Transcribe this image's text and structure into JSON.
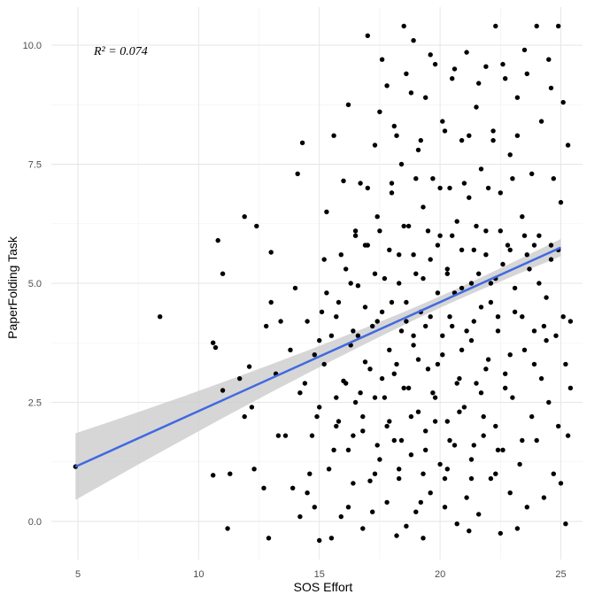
{
  "chart_data": {
    "type": "scatter",
    "xlabel": "SOS Effort",
    "ylabel": "PaperFolding Task",
    "xlim": [
      3.9,
      25.9
    ],
    "ylim": [
      -0.8,
      10.8
    ],
    "x_ticks": [
      5,
      10,
      15,
      20,
      25
    ],
    "y_ticks": [
      0.0,
      2.5,
      5.0,
      7.5,
      10.0
    ],
    "x_tick_labels": [
      "5",
      "10",
      "15",
      "20",
      "25"
    ],
    "y_tick_labels": [
      "0.0",
      "2.5",
      "5.0",
      "7.5",
      "10.0"
    ],
    "annotation": "R² = 0.074",
    "grid": true,
    "point_color": "#000000",
    "fit_line": {
      "color": "#4169E1",
      "x": [
        4.9,
        25.0
      ],
      "y": [
        1.15,
        5.75
      ],
      "band_color": "#cccccc",
      "band_upper": [
        1.85,
        6.0
      ],
      "band_lower": [
        0.45,
        5.5
      ]
    },
    "points": [
      [
        4.9,
        1.15
      ],
      [
        8.4,
        4.3
      ],
      [
        10.6,
        0.97
      ],
      [
        10.6,
        3.75
      ],
      [
        10.7,
        3.65
      ],
      [
        10.8,
        5.9
      ],
      [
        11.0,
        5.2
      ],
      [
        11.0,
        2.75
      ],
      [
        11.2,
        -0.15
      ],
      [
        11.3,
        1.0
      ],
      [
        11.7,
        3.0
      ],
      [
        11.9,
        6.4
      ],
      [
        11.9,
        2.2
      ],
      [
        12.1,
        3.25
      ],
      [
        12.2,
        2.4
      ],
      [
        12.3,
        1.1
      ],
      [
        12.4,
        6.2
      ],
      [
        12.7,
        0.7
      ],
      [
        12.8,
        4.1
      ],
      [
        12.9,
        -0.35
      ],
      [
        13.0,
        5.65
      ],
      [
        13.0,
        4.6
      ],
      [
        13.2,
        3.1
      ],
      [
        13.3,
        1.8
      ],
      [
        13.4,
        4.2
      ],
      [
        13.6,
        1.8
      ],
      [
        13.9,
        0.7
      ],
      [
        14.0,
        4.9
      ],
      [
        14.1,
        7.3
      ],
      [
        14.2,
        0.1
      ],
      [
        14.3,
        7.95
      ],
      [
        14.4,
        2.9
      ],
      [
        14.5,
        0.6
      ],
      [
        14.6,
        1.0
      ],
      [
        14.7,
        1.8
      ],
      [
        14.8,
        0.3
      ],
      [
        14.9,
        2.2
      ],
      [
        15.0,
        3.8
      ],
      [
        15.0,
        2.4
      ],
      [
        15.0,
        -0.4
      ],
      [
        15.1,
        4.4
      ],
      [
        15.2,
        5.5
      ],
      [
        15.3,
        6.5
      ],
      [
        15.4,
        1.1
      ],
      [
        15.5,
        3.9
      ],
      [
        15.5,
        -0.35
      ],
      [
        15.6,
        8.1
      ],
      [
        15.7,
        2.0
      ],
      [
        15.8,
        4.6
      ],
      [
        15.9,
        0.1
      ],
      [
        16.0,
        2.95
      ],
      [
        16.0,
        7.15
      ],
      [
        16.1,
        5.3
      ],
      [
        16.2,
        1.5
      ],
      [
        16.2,
        8.75
      ],
      [
        16.3,
        3.7
      ],
      [
        16.4,
        0.8
      ],
      [
        16.5,
        6.1
      ],
      [
        16.5,
        2.5
      ],
      [
        16.6,
        4.95
      ],
      [
        16.7,
        7.1
      ],
      [
        16.8,
        1.9
      ],
      [
        16.8,
        -0.15
      ],
      [
        16.9,
        3.35
      ],
      [
        17.0,
        5.8
      ],
      [
        17.0,
        10.2
      ],
      [
        17.1,
        0.85
      ],
      [
        17.2,
        4.1
      ],
      [
        17.3,
        2.6
      ],
      [
        17.3,
        7.9
      ],
      [
        17.4,
        6.4
      ],
      [
        17.5,
        1.3
      ],
      [
        17.5,
        8.6
      ],
      [
        17.6,
        3.0
      ],
      [
        17.7,
        5.1
      ],
      [
        17.8,
        0.4
      ],
      [
        17.8,
        9.15
      ],
      [
        17.9,
        2.1
      ],
      [
        18.0,
        4.6
      ],
      [
        18.0,
        6.9
      ],
      [
        18.1,
        1.7
      ],
      [
        18.1,
        8.3
      ],
      [
        18.2,
        3.3
      ],
      [
        18.3,
        5.6
      ],
      [
        18.3,
        0.9
      ],
      [
        18.4,
        7.5
      ],
      [
        18.5,
        2.8
      ],
      [
        18.5,
        10.4
      ],
      [
        18.6,
        4.2
      ],
      [
        18.6,
        -0.1
      ],
      [
        18.7,
        6.2
      ],
      [
        18.8,
        1.4
      ],
      [
        18.8,
        9.0
      ],
      [
        18.9,
        3.7
      ],
      [
        18.9,
        10.1
      ],
      [
        19.0,
        5.2
      ],
      [
        19.0,
        0.2
      ],
      [
        19.1,
        2.3
      ],
      [
        19.1,
        7.8
      ],
      [
        19.2,
        4.4
      ],
      [
        19.3,
        6.6
      ],
      [
        19.3,
        -0.35
      ],
      [
        19.4,
        1.9
      ],
      [
        19.4,
        8.9
      ],
      [
        19.5,
        3.2
      ],
      [
        19.6,
        5.5
      ],
      [
        19.6,
        0.6
      ],
      [
        19.7,
        7.2
      ],
      [
        19.8,
        2.6
      ],
      [
        19.8,
        9.6
      ],
      [
        19.9,
        4.8
      ],
      [
        20.0,
        1.2
      ],
      [
        20.0,
        6.0
      ],
      [
        20.1,
        3.5
      ],
      [
        20.1,
        8.4
      ],
      [
        20.2,
        0.9
      ],
      [
        20.3,
        5.3
      ],
      [
        20.3,
        2.1
      ],
      [
        20.4,
        7.0
      ],
      [
        20.5,
        4.1
      ],
      [
        20.5,
        9.3
      ],
      [
        20.6,
        1.6
      ],
      [
        20.7,
        6.3
      ],
      [
        20.7,
        -0.05
      ],
      [
        20.8,
        3.0
      ],
      [
        20.9,
        8.0
      ],
      [
        20.9,
        4.9
      ],
      [
        21.0,
        2.4
      ],
      [
        21.1,
        9.85
      ],
      [
        21.1,
        0.5
      ],
      [
        21.2,
        6.8
      ],
      [
        21.3,
        3.8
      ],
      [
        21.3,
        1.3
      ],
      [
        21.4,
        5.7
      ],
      [
        21.5,
        8.7
      ],
      [
        21.5,
        2.9
      ],
      [
        21.6,
        0.15
      ],
      [
        21.7,
        4.5
      ],
      [
        21.7,
        7.4
      ],
      [
        21.8,
        1.8
      ],
      [
        21.9,
        6.1
      ],
      [
        21.9,
        9.55
      ],
      [
        22.0,
        3.4
      ],
      [
        22.1,
        0.9
      ],
      [
        22.1,
        5.0
      ],
      [
        22.2,
        8.2
      ],
      [
        22.3,
        2.0
      ],
      [
        22.3,
        10.4
      ],
      [
        22.4,
        4.3
      ],
      [
        22.5,
        6.9
      ],
      [
        22.5,
        -0.25
      ],
      [
        22.6,
        1.5
      ],
      [
        22.7,
        9.3
      ],
      [
        22.7,
        3.1
      ],
      [
        22.8,
        5.8
      ],
      [
        22.9,
        0.6
      ],
      [
        22.9,
        7.7
      ],
      [
        23.0,
        2.6
      ],
      [
        23.1,
        4.9
      ],
      [
        23.2,
        -0.15
      ],
      [
        23.2,
        8.9
      ],
      [
        23.3,
        1.2
      ],
      [
        23.4,
        6.4
      ],
      [
        23.5,
        3.6
      ],
      [
        23.5,
        9.9
      ],
      [
        23.6,
        0.3
      ],
      [
        23.7,
        5.3
      ],
      [
        23.8,
        2.2
      ],
      [
        23.8,
        7.3
      ],
      [
        23.9,
        4.0
      ],
      [
        24.0,
        10.4
      ],
      [
        24.0,
        1.7
      ],
      [
        24.1,
        6.0
      ],
      [
        24.2,
        3.0
      ],
      [
        24.2,
        8.4
      ],
      [
        24.3,
        0.5
      ],
      [
        24.4,
        4.7
      ],
      [
        24.5,
        2.5
      ],
      [
        24.5,
        9.7
      ],
      [
        24.6,
        5.8
      ],
      [
        24.7,
        1.0
      ],
      [
        24.7,
        7.2
      ],
      [
        24.8,
        3.9
      ],
      [
        24.9,
        10.4
      ],
      [
        24.9,
        2.0
      ],
      [
        25.0,
        6.7
      ],
      [
        25.0,
        0.8
      ],
      [
        25.1,
        8.8
      ],
      [
        25.1,
        4.3
      ],
      [
        25.2,
        3.3
      ],
      [
        25.2,
        -0.05
      ],
      [
        25.3,
        1.8
      ],
      [
        25.3,
        7.9
      ],
      [
        25.4,
        2.8
      ],
      [
        25.4,
        4.2
      ],
      [
        15.2,
        3.3
      ],
      [
        15.7,
        4.3
      ],
      [
        16.1,
        2.9
      ],
      [
        16.6,
        3.9
      ],
      [
        17.1,
        3.2
      ],
      [
        17.6,
        4.4
      ],
      [
        18.1,
        3.1
      ],
      [
        18.6,
        4.6
      ],
      [
        19.1,
        3.4
      ],
      [
        19.6,
        4.3
      ],
      [
        20.1,
        3.9
      ],
      [
        20.6,
        4.8
      ],
      [
        21.1,
        4.0
      ],
      [
        21.6,
        5.2
      ],
      [
        22.1,
        4.6
      ],
      [
        22.6,
        5.4
      ],
      [
        23.1,
        4.4
      ],
      [
        23.6,
        5.6
      ],
      [
        24.1,
        5.0
      ],
      [
        24.6,
        5.5
      ],
      [
        16.3,
        5.0
      ],
      [
        17.3,
        5.2
      ],
      [
        18.3,
        5.0
      ],
      [
        19.3,
        5.1
      ],
      [
        20.3,
        5.2
      ],
      [
        21.3,
        5.0
      ],
      [
        22.3,
        5.1
      ],
      [
        17.8,
        2.0
      ],
      [
        18.8,
        2.2
      ],
      [
        19.8,
        2.1
      ],
      [
        20.8,
        2.3
      ],
      [
        21.8,
        2.2
      ],
      [
        16.8,
        2.2
      ],
      [
        15.8,
        2.1
      ],
      [
        17.3,
        1.0
      ],
      [
        18.3,
        1.1
      ],
      [
        19.3,
        1.0
      ],
      [
        20.3,
        1.1
      ],
      [
        21.3,
        0.9
      ],
      [
        22.3,
        1.0
      ],
      [
        16.5,
        6.0
      ],
      [
        17.5,
        6.1
      ],
      [
        18.5,
        6.2
      ],
      [
        19.5,
        6.1
      ],
      [
        20.5,
        6.0
      ],
      [
        21.5,
        6.2
      ],
      [
        22.5,
        6.1
      ],
      [
        23.5,
        6.0
      ],
      [
        17.0,
        7.0
      ],
      [
        18.0,
        7.1
      ],
      [
        19.0,
        7.2
      ],
      [
        20.0,
        7.0
      ],
      [
        21.0,
        7.1
      ],
      [
        22.0,
        7.0
      ],
      [
        23.0,
        7.2
      ],
      [
        18.2,
        8.1
      ],
      [
        19.2,
        8.0
      ],
      [
        20.2,
        8.2
      ],
      [
        21.2,
        8.1
      ],
      [
        22.2,
        8.0
      ],
      [
        23.2,
        8.1
      ],
      [
        14.5,
        4.2
      ],
      [
        14.8,
        3.5
      ],
      [
        15.3,
        4.8
      ],
      [
        16.9,
        4.5
      ],
      [
        17.9,
        3.6
      ],
      [
        18.9,
        3.9
      ],
      [
        19.9,
        3.3
      ],
      [
        20.9,
        3.6
      ],
      [
        21.9,
        3.2
      ],
      [
        22.9,
        3.5
      ],
      [
        23.9,
        3.3
      ],
      [
        24.4,
        3.8
      ],
      [
        13.8,
        3.6
      ],
      [
        14.2,
        2.7
      ],
      [
        15.6,
        1.5
      ],
      [
        16.4,
        1.8
      ],
      [
        17.4,
        1.6
      ],
      [
        18.4,
        1.7
      ],
      [
        19.4,
        1.5
      ],
      [
        20.4,
        1.7
      ],
      [
        21.4,
        1.6
      ],
      [
        22.4,
        1.5
      ],
      [
        23.4,
        1.7
      ],
      [
        16.2,
        0.3
      ],
      [
        17.2,
        0.2
      ],
      [
        18.2,
        -0.3
      ],
      [
        19.2,
        0.4
      ],
      [
        20.2,
        0.3
      ],
      [
        21.2,
        -0.2
      ],
      [
        15.9,
        5.6
      ],
      [
        16.9,
        5.8
      ],
      [
        17.9,
        5.7
      ],
      [
        18.9,
        5.6
      ],
      [
        19.9,
        5.8
      ],
      [
        20.9,
        5.7
      ],
      [
        21.9,
        5.6
      ],
      [
        22.9,
        5.7
      ],
      [
        23.9,
        5.8
      ],
      [
        24.9,
        5.7
      ],
      [
        17.6,
        9.7
      ],
      [
        18.6,
        9.4
      ],
      [
        19.6,
        9.8
      ],
      [
        20.6,
        9.5
      ],
      [
        21.6,
        9.2
      ],
      [
        22.6,
        9.6
      ],
      [
        23.6,
        9.4
      ],
      [
        24.6,
        9.1
      ],
      [
        16.4,
        4.0
      ],
      [
        17.4,
        4.2
      ],
      [
        18.4,
        4.0
      ],
      [
        19.4,
        4.1
      ],
      [
        20.4,
        4.3
      ],
      [
        21.4,
        4.2
      ],
      [
        22.4,
        4.0
      ],
      [
        23.4,
        4.3
      ],
      [
        24.3,
        4.1
      ],
      [
        17.7,
        2.6
      ],
      [
        18.7,
        2.8
      ],
      [
        19.7,
        2.7
      ],
      [
        20.7,
        2.9
      ],
      [
        21.7,
        2.7
      ],
      [
        22.7,
        2.8
      ],
      [
        16.7,
        2.7
      ],
      [
        15.7,
        2.6
      ]
    ]
  }
}
